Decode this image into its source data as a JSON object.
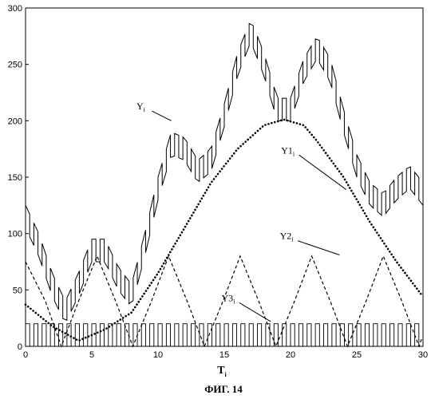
{
  "chart_data": {
    "type": "line",
    "title": "",
    "caption": "ФИГ. 14",
    "xlabel": {
      "main": "T",
      "sub": "i"
    },
    "ylabel": "",
    "xlim": [
      0,
      30
    ],
    "ylim": [
      0,
      300
    ],
    "x_ticks": [
      0,
      5,
      10,
      15,
      20,
      25,
      30
    ],
    "y_ticks": [
      0,
      50,
      100,
      150,
      200,
      250,
      300
    ],
    "grid": false,
    "legend": "none",
    "series": [
      {
        "name": "Y",
        "sub": "i",
        "style": "solid-stepped",
        "x": [
          0,
          1,
          2,
          3,
          4,
          5,
          6,
          7,
          8,
          9,
          10,
          11,
          12,
          13,
          14,
          15,
          16,
          17,
          18,
          19,
          20,
          21,
          22,
          23,
          24,
          25,
          26,
          27,
          28,
          29,
          30
        ],
        "values": [
          115,
          90,
          55,
          30,
          55,
          85,
          85,
          60,
          45,
          90,
          140,
          180,
          175,
          155,
          165,
          205,
          250,
          280,
          250,
          210,
          210,
          245,
          265,
          245,
          200,
          160,
          135,
          125,
          140,
          150,
          135
        ]
      },
      {
        "name": "Y1",
        "sub": "i",
        "style": "dotted",
        "x": [
          0,
          2,
          4,
          6,
          8,
          10,
          12,
          14,
          16,
          18,
          19.5,
          21,
          22,
          24,
          26,
          28,
          30
        ],
        "values": [
          37,
          18,
          5,
          15,
          30,
          65,
          105,
          145,
          175,
          196,
          201,
          196,
          182,
          150,
          110,
          75,
          44
        ]
      },
      {
        "name": "Y2",
        "sub": "i",
        "style": "dashed",
        "x": [
          0,
          1.5,
          2.7,
          4,
          5.4,
          6.8,
          8.1,
          9.5,
          10.8,
          12.2,
          13.5,
          14.9,
          16.2,
          17.6,
          18.9,
          20.3,
          21.6,
          23,
          24.3,
          25.7,
          27,
          28.4,
          29.7,
          30
        ],
        "values": [
          75,
          40,
          0,
          40,
          80,
          40,
          0,
          40,
          80,
          40,
          0,
          40,
          80,
          40,
          0,
          40,
          80,
          40,
          0,
          40,
          80,
          40,
          0,
          10
        ]
      },
      {
        "name": "Y3",
        "sub": "i",
        "style": "square-pulse",
        "amplitude": 20,
        "period": 0.625
      }
    ]
  }
}
